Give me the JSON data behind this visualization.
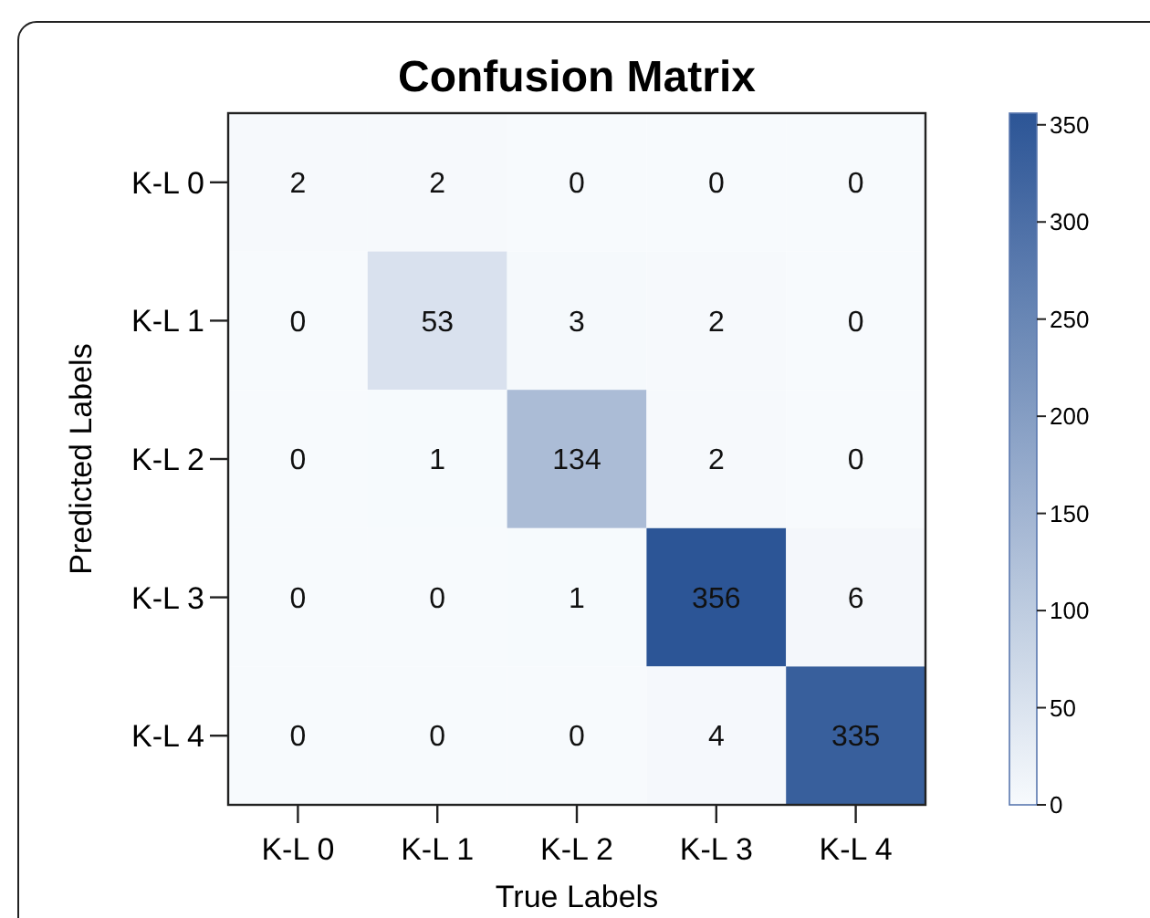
{
  "chart_data": {
    "type": "heatmap",
    "title": "Confusion Matrix",
    "xlabel": "True Labels",
    "ylabel": "Predicted Labels",
    "categories": [
      "K-L 0",
      "K-L 1",
      "K-L 2",
      "K-L 3",
      "K-L 4"
    ],
    "y_categories": [
      "K-L 0",
      "K-L 1",
      "K-L 2",
      "K-L 3",
      "K-L 4"
    ],
    "cells": [
      [
        2,
        2,
        0,
        0,
        0
      ],
      [
        0,
        53,
        3,
        2,
        0
      ],
      [
        0,
        1,
        134,
        2,
        0
      ],
      [
        0,
        0,
        1,
        356,
        6
      ],
      [
        0,
        0,
        0,
        4,
        335
      ]
    ],
    "data_labels": true,
    "colors": [
      "#f7fafd",
      "#2c5596"
    ],
    "clim": [
      0,
      356
    ],
    "cticks": [
      0,
      50,
      100,
      150,
      200,
      250,
      300,
      350
    ]
  }
}
